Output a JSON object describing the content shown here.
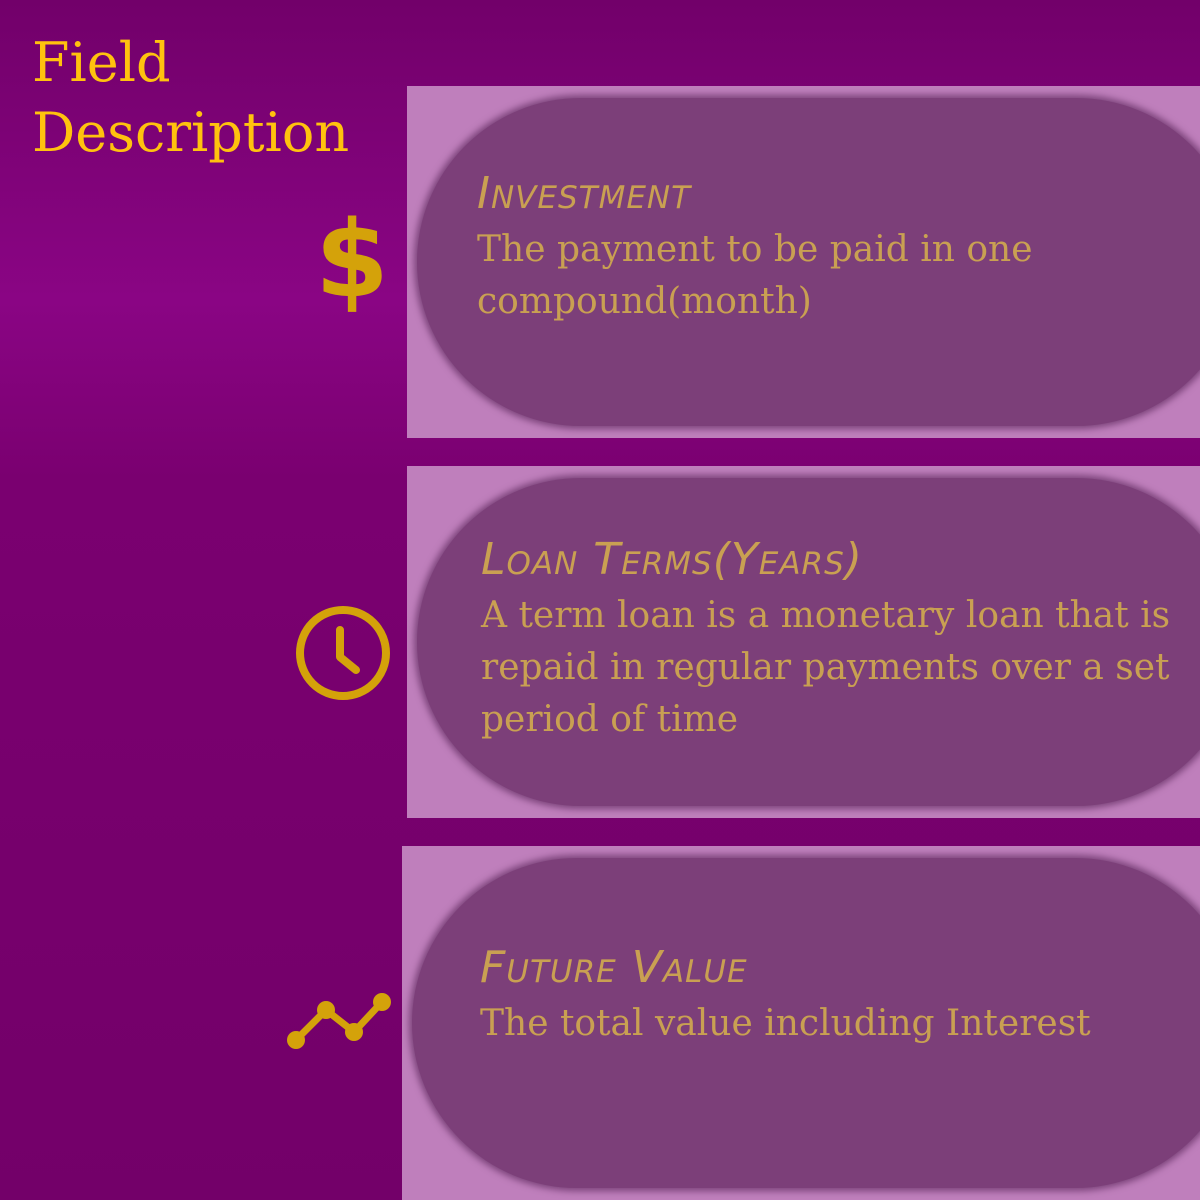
{
  "title": "Field Description",
  "colors": {
    "background": "#7a0070",
    "title": "#ffc20e",
    "card_frame": "#bf7fbc",
    "card_pill": "#7c3f79",
    "accent_text": "#c9a052",
    "icon": "#d4a20a"
  },
  "fields": [
    {
      "icon": "dollar-icon",
      "icon_glyph": "$",
      "name": "Investment",
      "description": "The payment to be paid in one compound(month)"
    },
    {
      "icon": "clock-icon",
      "name": "Loan Terms(Years)",
      "description": "A term loan is a monetary loan that is repaid in regular payments over a set period of time"
    },
    {
      "icon": "trending-up-icon",
      "name": "Future Value",
      "description": "The total value including Interest"
    }
  ]
}
